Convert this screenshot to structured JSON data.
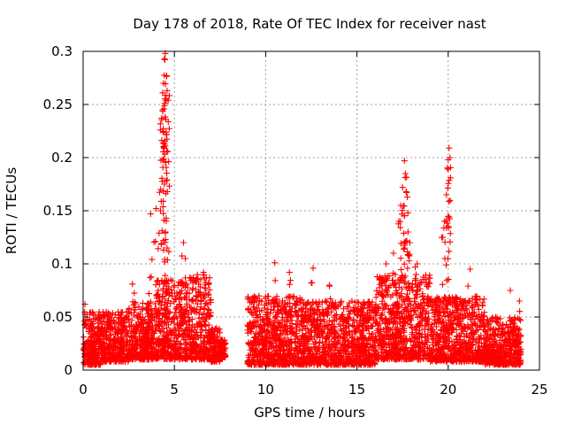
{
  "chart_data": {
    "type": "scatter",
    "title": "Day 178 of 2018, Rate Of TEC Index for receiver nast",
    "xlabel": "GPS time / hours",
    "ylabel": "ROTI / TECUs",
    "xlim": [
      0,
      25
    ],
    "ylim": [
      0,
      0.3
    ],
    "xticks": [
      0,
      5,
      10,
      15,
      20,
      25
    ],
    "yticks": [
      0,
      0.05,
      0.1,
      0.15,
      0.2,
      0.25,
      0.3
    ],
    "xtick_labels": [
      "0",
      "5",
      "10",
      "15",
      "20",
      "25"
    ],
    "ytick_labels": [
      "0",
      "0.05",
      "0.1",
      "0.15",
      "0.2",
      "0.25",
      "0.3"
    ],
    "grid": true,
    "marker": "+",
    "series": [
      {
        "name": "ROTI",
        "color": "#ff0000",
        "segments": [
          {
            "x_range": [
              0.0,
              1.0
            ],
            "base": [
              0.005,
              0.055
            ]
          },
          {
            "x_range": [
              1.0,
              2.5
            ],
            "base": [
              0.008,
              0.055
            ]
          },
          {
            "x_range": [
              2.5,
              4.0
            ],
            "base": [
              0.01,
              0.065
            ]
          },
          {
            "x_range": [
              4.0,
              5.5
            ],
            "base": [
              0.01,
              0.085
            ]
          },
          {
            "x_range": [
              5.5,
              7.0
            ],
            "base": [
              0.01,
              0.09
            ]
          },
          {
            "x_range": [
              7.0,
              7.5
            ],
            "base": [
              0.008,
              0.04
            ]
          },
          {
            "x_range": [
              7.5,
              7.8
            ],
            "base": [
              0.012,
              0.03
            ]
          },
          {
            "x_range": [
              9.0,
              12.0
            ],
            "base": [
              0.005,
              0.07
            ]
          },
          {
            "x_range": [
              12.0,
              16.0
            ],
            "base": [
              0.005,
              0.065
            ]
          },
          {
            "x_range": [
              16.0,
              19.0
            ],
            "base": [
              0.01,
              0.09
            ]
          },
          {
            "x_range": [
              19.0,
              22.0
            ],
            "base": [
              0.008,
              0.07
            ]
          },
          {
            "x_range": [
              22.0,
              24.0
            ],
            "base": [
              0.005,
              0.05
            ]
          }
        ],
        "peaks": [
          {
            "x": 0.1,
            "y": 0.062
          },
          {
            "x": 2.7,
            "y": 0.081
          },
          {
            "x": 3.7,
            "y": 0.147
          },
          {
            "x": 4.0,
            "y": 0.152
          },
          {
            "x": 4.25,
            "y": 0.17
          },
          {
            "x": 4.3,
            "y": 0.237
          },
          {
            "x": 4.35,
            "y": 0.245
          },
          {
            "x": 4.4,
            "y": 0.27
          },
          {
            "x": 4.45,
            "y": 0.293
          },
          {
            "x": 4.5,
            "y": 0.298
          },
          {
            "x": 4.55,
            "y": 0.255
          },
          {
            "x": 4.6,
            "y": 0.263
          },
          {
            "x": 4.5,
            "y": 0.196
          },
          {
            "x": 4.45,
            "y": 0.175
          },
          {
            "x": 4.55,
            "y": 0.143
          },
          {
            "x": 4.5,
            "y": 0.13
          },
          {
            "x": 4.4,
            "y": 0.122
          },
          {
            "x": 4.6,
            "y": 0.115
          },
          {
            "x": 5.5,
            "y": 0.12
          },
          {
            "x": 5.6,
            "y": 0.105
          },
          {
            "x": 6.6,
            "y": 0.092
          },
          {
            "x": 10.5,
            "y": 0.101
          },
          {
            "x": 11.3,
            "y": 0.092
          },
          {
            "x": 12.6,
            "y": 0.096
          },
          {
            "x": 13.5,
            "y": 0.08
          },
          {
            "x": 16.6,
            "y": 0.1
          },
          {
            "x": 17.0,
            "y": 0.11
          },
          {
            "x": 17.3,
            "y": 0.14
          },
          {
            "x": 17.4,
            "y": 0.155
          },
          {
            "x": 17.5,
            "y": 0.172
          },
          {
            "x": 17.6,
            "y": 0.197
          },
          {
            "x": 17.65,
            "y": 0.185
          },
          {
            "x": 17.7,
            "y": 0.168
          },
          {
            "x": 17.8,
            "y": 0.13
          },
          {
            "x": 17.9,
            "y": 0.12
          },
          {
            "x": 18.3,
            "y": 0.1
          },
          {
            "x": 19.7,
            "y": 0.125
          },
          {
            "x": 19.8,
            "y": 0.14
          },
          {
            "x": 19.9,
            "y": 0.165
          },
          {
            "x": 20.0,
            "y": 0.198
          },
          {
            "x": 20.05,
            "y": 0.209
          },
          {
            "x": 20.1,
            "y": 0.2
          },
          {
            "x": 21.2,
            "y": 0.095
          },
          {
            "x": 23.4,
            "y": 0.075
          },
          {
            "x": 23.9,
            "y": 0.065
          }
        ]
      }
    ]
  }
}
